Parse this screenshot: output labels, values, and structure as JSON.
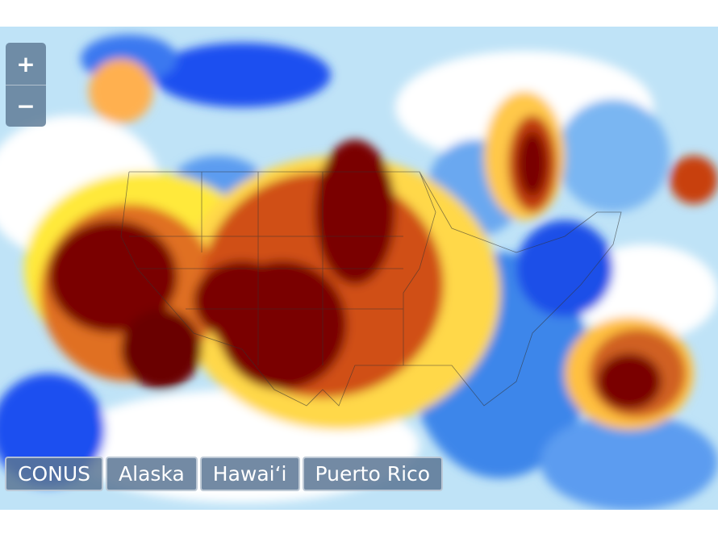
{
  "zoom": {
    "in": "+",
    "out": "−"
  },
  "regions": [
    "CONUS",
    "Alaska",
    "Hawai‘i",
    "Puerto Rico"
  ]
}
